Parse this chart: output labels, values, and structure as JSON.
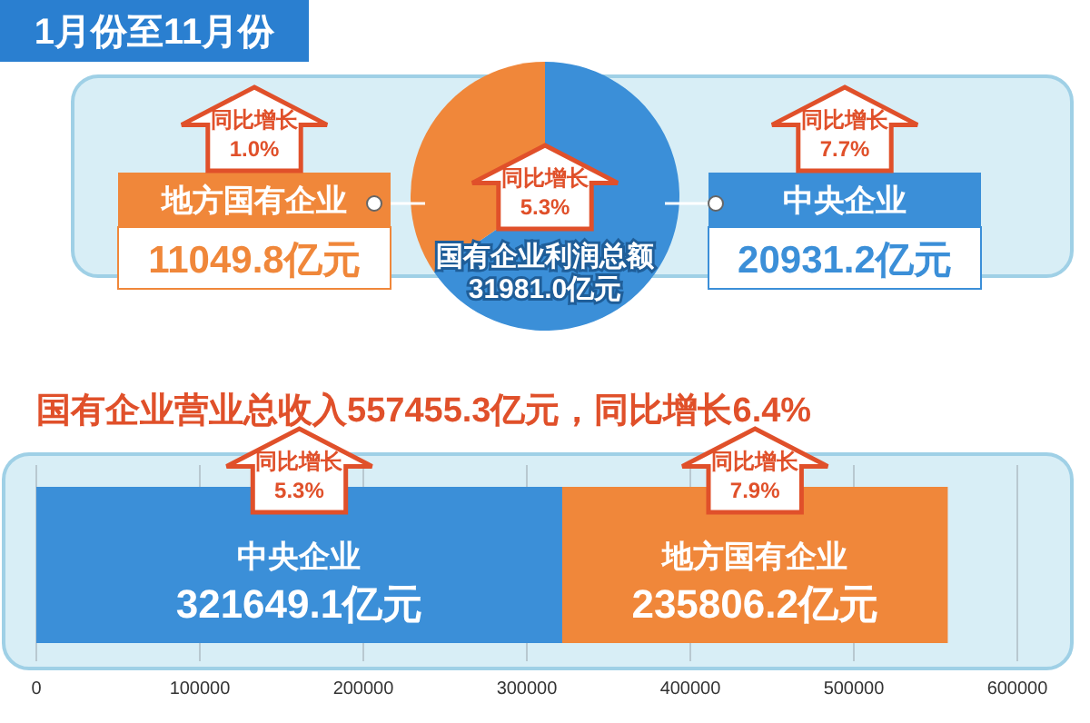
{
  "chart_data": [
    {
      "type": "pie",
      "title": "1月份至11月份",
      "subtitle": "国有企业利润总额\n31981.0亿元",
      "categories": [
        "地方国有企业",
        "中央企业"
      ],
      "values": [
        11049.8,
        20931.2
      ],
      "colors": [
        "#f0873a",
        "#3b8fd8"
      ],
      "value_labels": [
        "11049.8亿元",
        "20931.2亿元"
      ],
      "annotations": [
        "同比增长\n1.0%",
        "同比增长\n7.7%",
        "同比增长\n5.3%"
      ]
    },
    {
      "type": "bar",
      "orientation": "horizontal",
      "stacked": true,
      "title": "国有企业营业总收入557455.3亿元，同比增长6.4%",
      "categories": [
        null
      ],
      "series": [
        {
          "name": "中央企业",
          "color": "#3b8fd8",
          "values": [
            321649.1
          ],
          "value_labels": [
            "321649.1亿元"
          ]
        },
        {
          "name": "地方国有企业",
          "color": "#f0873a",
          "values": [
            235806.2
          ],
          "value_labels": [
            "235806.2亿元"
          ]
        }
      ],
      "xlim": [
        0,
        600000
      ],
      "xticks": [
        0,
        100000,
        200000,
        300000,
        400000,
        500000,
        600000
      ],
      "grid": "x",
      "annotations": [
        "同比增长\n5.3%",
        "同比增长\n7.9%"
      ]
    }
  ]
}
